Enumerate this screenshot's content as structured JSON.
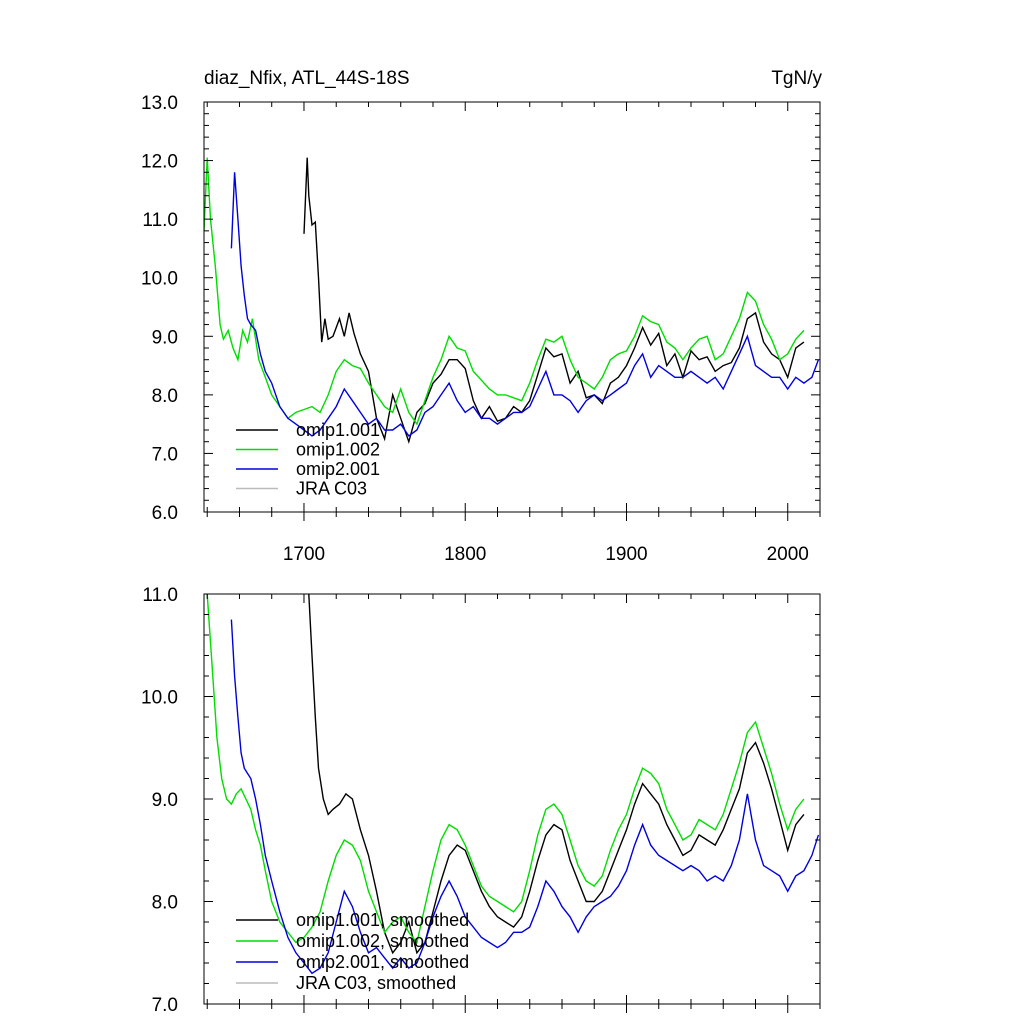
{
  "chart_data": [
    {
      "type": "line",
      "title": "diaz_Nfix, ATL_44S-18S",
      "units": "TgN/y",
      "xlabel": "",
      "ylabel": "",
      "xlim": [
        1638,
        2020
      ],
      "ylim": [
        6.0,
        13.0
      ],
      "x_ticks": [
        1700,
        1800,
        1900,
        2000
      ],
      "x_tick_labels": [
        "1700",
        "1800",
        "1900",
        "2000"
      ],
      "y_ticks": [
        6.0,
        7.0,
        8.0,
        9.0,
        10.0,
        11.0,
        12.0,
        13.0
      ],
      "y_tick_labels": [
        "6.0",
        "7.0",
        "8.0",
        "9.0",
        "10.0",
        "11.0",
        "12.0",
        "13.0"
      ],
      "legend_position": "bottom-left",
      "series": [
        {
          "name": "omip1.001",
          "color": "#000000",
          "x": [
            1700,
            1702,
            1703,
            1705,
            1707,
            1709,
            1711,
            1713,
            1715,
            1718,
            1722,
            1725,
            1728,
            1731,
            1735,
            1740,
            1745,
            1750,
            1755,
            1760,
            1765,
            1770,
            1775,
            1780,
            1785,
            1790,
            1795,
            1800,
            1805,
            1810,
            1815,
            1820,
            1825,
            1830,
            1835,
            1840,
            1845,
            1850,
            1855,
            1860,
            1865,
            1870,
            1875,
            1880,
            1885,
            1890,
            1895,
            1900,
            1905,
            1910,
            1915,
            1920,
            1925,
            1930,
            1935,
            1940,
            1945,
            1950,
            1955,
            1960,
            1965,
            1970,
            1975,
            1980,
            1985,
            1990,
            1995,
            2000,
            2005,
            2010
          ],
          "values": [
            10.75,
            12.05,
            11.4,
            10.9,
            10.95,
            10.0,
            8.9,
            9.3,
            8.95,
            9.0,
            9.3,
            9.0,
            9.4,
            9.05,
            8.7,
            8.4,
            7.6,
            7.25,
            8.0,
            7.6,
            7.2,
            7.7,
            7.85,
            8.2,
            8.35,
            8.6,
            8.6,
            8.45,
            7.9,
            7.6,
            7.8,
            7.55,
            7.6,
            7.8,
            7.7,
            7.9,
            8.35,
            8.8,
            8.65,
            8.7,
            8.2,
            8.4,
            7.95,
            8.0,
            7.85,
            8.2,
            8.3,
            8.5,
            8.8,
            9.15,
            8.85,
            9.05,
            8.5,
            8.7,
            8.3,
            8.75,
            8.6,
            8.65,
            8.4,
            8.5,
            8.55,
            8.8,
            9.3,
            9.4,
            8.9,
            8.7,
            8.6,
            8.3,
            8.8,
            8.9
          ]
        },
        {
          "name": "omip1.002",
          "color": "#00dd00",
          "x": [
            1638,
            1640,
            1642,
            1645,
            1648,
            1650,
            1653,
            1656,
            1659,
            1662,
            1665,
            1668,
            1672,
            1676,
            1680,
            1685,
            1690,
            1695,
            1700,
            1705,
            1710,
            1715,
            1720,
            1725,
            1730,
            1735,
            1740,
            1745,
            1750,
            1755,
            1760,
            1765,
            1770,
            1775,
            1780,
            1785,
            1790,
            1795,
            1800,
            1805,
            1810,
            1815,
            1820,
            1825,
            1830,
            1835,
            1840,
            1845,
            1850,
            1855,
            1860,
            1865,
            1870,
            1875,
            1880,
            1885,
            1890,
            1895,
            1900,
            1905,
            1910,
            1915,
            1920,
            1925,
            1930,
            1935,
            1940,
            1945,
            1950,
            1955,
            1960,
            1965,
            1970,
            1975,
            1980,
            1985,
            1990,
            1995,
            2000,
            2005,
            2010
          ],
          "values": [
            10.8,
            12.05,
            11.0,
            10.2,
            9.2,
            8.95,
            9.1,
            8.8,
            8.6,
            9.1,
            8.9,
            9.3,
            8.6,
            8.3,
            8.0,
            7.8,
            7.6,
            7.7,
            7.75,
            7.8,
            7.7,
            8.0,
            8.4,
            8.6,
            8.5,
            8.45,
            8.2,
            8.0,
            7.8,
            7.7,
            8.1,
            7.7,
            7.5,
            7.9,
            8.3,
            8.6,
            9.0,
            8.8,
            8.75,
            8.4,
            8.25,
            8.1,
            8.0,
            8.0,
            7.95,
            7.9,
            8.2,
            8.6,
            8.95,
            8.9,
            9.0,
            8.6,
            8.3,
            8.2,
            8.1,
            8.3,
            8.6,
            8.7,
            8.75,
            9.0,
            9.35,
            9.25,
            9.2,
            8.9,
            8.8,
            8.6,
            8.8,
            8.95,
            9.0,
            8.6,
            8.7,
            9.0,
            9.3,
            9.75,
            9.6,
            9.2,
            8.95,
            8.6,
            8.7,
            8.95,
            9.1
          ]
        },
        {
          "name": "omip2.001",
          "color": "#0000dd",
          "x": [
            1655,
            1657,
            1659,
            1661,
            1663,
            1665,
            1667,
            1670,
            1673,
            1676,
            1680,
            1685,
            1690,
            1695,
            1700,
            1705,
            1710,
            1715,
            1720,
            1725,
            1730,
            1735,
            1740,
            1745,
            1750,
            1755,
            1760,
            1765,
            1770,
            1775,
            1780,
            1785,
            1790,
            1795,
            1800,
            1805,
            1810,
            1815,
            1820,
            1825,
            1830,
            1835,
            1840,
            1845,
            1850,
            1855,
            1860,
            1865,
            1870,
            1875,
            1880,
            1885,
            1890,
            1895,
            1900,
            1905,
            1910,
            1915,
            1920,
            1925,
            1930,
            1935,
            1940,
            1945,
            1950,
            1955,
            1960,
            1965,
            1970,
            1975,
            1980,
            1985,
            1990,
            1995,
            2000,
            2005,
            2010,
            2015,
            2019
          ],
          "values": [
            10.5,
            11.8,
            11.0,
            10.2,
            9.7,
            9.3,
            9.2,
            9.1,
            8.7,
            8.4,
            8.2,
            7.8,
            7.6,
            7.5,
            7.4,
            7.3,
            7.4,
            7.6,
            7.8,
            8.1,
            7.9,
            7.7,
            7.5,
            7.6,
            7.4,
            7.4,
            7.5,
            7.3,
            7.4,
            7.7,
            7.8,
            8.0,
            8.2,
            7.9,
            7.7,
            7.8,
            7.6,
            7.6,
            7.5,
            7.6,
            7.7,
            7.7,
            7.8,
            8.1,
            8.4,
            8.0,
            8.0,
            7.9,
            7.7,
            7.9,
            8.0,
            7.9,
            8.0,
            8.1,
            8.2,
            8.5,
            8.7,
            8.3,
            8.5,
            8.4,
            8.3,
            8.3,
            8.4,
            8.3,
            8.2,
            8.3,
            8.1,
            8.4,
            8.7,
            9.0,
            8.5,
            8.4,
            8.3,
            8.3,
            8.1,
            8.3,
            8.2,
            8.3,
            8.6
          ]
        },
        {
          "name": "JRA C03",
          "color": "#bbbbbb",
          "x": [],
          "values": []
        }
      ]
    },
    {
      "type": "line",
      "title": "",
      "xlabel": "",
      "ylabel": "",
      "xlim": [
        1638,
        2020
      ],
      "ylim": [
        7.0,
        11.0
      ],
      "x_ticks": [
        1700,
        1800,
        1900,
        2000
      ],
      "x_tick_labels": [],
      "y_ticks": [
        7.0,
        8.0,
        9.0,
        10.0,
        11.0
      ],
      "y_tick_labels": [
        "7.0",
        "8.0",
        "9.0",
        "10.0",
        "11.0"
      ],
      "legend_position": "bottom-left",
      "series": [
        {
          "name": "omip1.001, smoothed",
          "color": "#000000",
          "x": [
            1703,
            1705,
            1707,
            1709,
            1712,
            1715,
            1718,
            1722,
            1726,
            1730,
            1735,
            1740,
            1745,
            1750,
            1755,
            1760,
            1765,
            1770,
            1775,
            1780,
            1785,
            1790,
            1795,
            1800,
            1805,
            1810,
            1815,
            1820,
            1825,
            1830,
            1835,
            1840,
            1845,
            1850,
            1855,
            1860,
            1865,
            1870,
            1875,
            1880,
            1885,
            1890,
            1895,
            1900,
            1905,
            1910,
            1915,
            1920,
            1925,
            1930,
            1935,
            1940,
            1945,
            1950,
            1955,
            1960,
            1965,
            1970,
            1975,
            1980,
            1985,
            1990,
            1995,
            2000,
            2005,
            2010
          ],
          "values": [
            11.0,
            10.4,
            9.8,
            9.3,
            9.0,
            8.85,
            8.9,
            8.95,
            9.05,
            9.0,
            8.7,
            8.45,
            8.1,
            7.7,
            7.5,
            7.6,
            7.8,
            7.5,
            7.6,
            7.9,
            8.2,
            8.45,
            8.55,
            8.5,
            8.3,
            8.1,
            7.95,
            7.85,
            7.8,
            7.75,
            7.85,
            8.1,
            8.4,
            8.65,
            8.75,
            8.7,
            8.4,
            8.2,
            8.0,
            8.0,
            8.1,
            8.3,
            8.5,
            8.7,
            8.95,
            9.15,
            9.05,
            8.95,
            8.75,
            8.6,
            8.45,
            8.5,
            8.65,
            8.6,
            8.55,
            8.7,
            8.9,
            9.1,
            9.45,
            9.55,
            9.35,
            9.1,
            8.8,
            8.5,
            8.75,
            8.85
          ]
        },
        {
          "name": "omip1.002, smoothed",
          "color": "#00dd00",
          "x": [
            1640,
            1643,
            1646,
            1649,
            1652,
            1655,
            1658,
            1661,
            1664,
            1667,
            1670,
            1673,
            1676,
            1680,
            1685,
            1690,
            1695,
            1700,
            1705,
            1710,
            1715,
            1720,
            1725,
            1730,
            1735,
            1740,
            1745,
            1750,
            1755,
            1760,
            1765,
            1770,
            1775,
            1780,
            1785,
            1790,
            1795,
            1800,
            1805,
            1810,
            1815,
            1820,
            1825,
            1830,
            1835,
            1840,
            1845,
            1850,
            1855,
            1860,
            1865,
            1870,
            1875,
            1880,
            1885,
            1890,
            1895,
            1900,
            1905,
            1910,
            1915,
            1920,
            1925,
            1930,
            1935,
            1940,
            1945,
            1950,
            1955,
            1960,
            1965,
            1970,
            1975,
            1980,
            1985,
            1990,
            1995,
            2000,
            2005,
            2010
          ],
          "values": [
            11.0,
            10.3,
            9.6,
            9.2,
            9.0,
            8.95,
            9.05,
            9.1,
            9.0,
            8.9,
            8.7,
            8.55,
            8.3,
            8.0,
            7.8,
            7.7,
            7.6,
            7.65,
            7.75,
            7.9,
            8.2,
            8.45,
            8.6,
            8.55,
            8.4,
            8.1,
            7.9,
            7.7,
            7.8,
            7.85,
            7.7,
            7.6,
            7.95,
            8.3,
            8.6,
            8.75,
            8.7,
            8.55,
            8.35,
            8.15,
            8.05,
            8.0,
            7.95,
            7.9,
            8.0,
            8.3,
            8.65,
            8.9,
            8.95,
            8.85,
            8.6,
            8.35,
            8.2,
            8.15,
            8.25,
            8.5,
            8.7,
            8.85,
            9.1,
            9.3,
            9.25,
            9.15,
            8.9,
            8.75,
            8.6,
            8.65,
            8.8,
            8.75,
            8.7,
            8.85,
            9.1,
            9.35,
            9.65,
            9.75,
            9.5,
            9.25,
            8.95,
            8.7,
            8.9,
            9.0
          ]
        },
        {
          "name": "omip2.001, smoothed",
          "color": "#0000dd",
          "x": [
            1655,
            1657,
            1659,
            1661,
            1663,
            1665,
            1667,
            1670,
            1673,
            1676,
            1680,
            1685,
            1690,
            1695,
            1700,
            1705,
            1710,
            1715,
            1720,
            1725,
            1730,
            1735,
            1740,
            1745,
            1750,
            1755,
            1760,
            1765,
            1770,
            1775,
            1780,
            1785,
            1790,
            1795,
            1800,
            1805,
            1810,
            1815,
            1820,
            1825,
            1830,
            1835,
            1840,
            1845,
            1850,
            1855,
            1860,
            1865,
            1870,
            1875,
            1880,
            1885,
            1890,
            1895,
            1900,
            1905,
            1910,
            1915,
            1920,
            1925,
            1930,
            1935,
            1940,
            1945,
            1950,
            1955,
            1960,
            1965,
            1970,
            1975,
            1980,
            1985,
            1990,
            1995,
            2000,
            2005,
            2010,
            2015,
            2019
          ],
          "values": [
            10.75,
            10.2,
            9.8,
            9.45,
            9.3,
            9.25,
            9.2,
            9.0,
            8.75,
            8.45,
            8.2,
            7.9,
            7.65,
            7.5,
            7.4,
            7.3,
            7.35,
            7.5,
            7.8,
            8.1,
            7.95,
            7.7,
            7.5,
            7.55,
            7.45,
            7.35,
            7.45,
            7.35,
            7.4,
            7.6,
            7.85,
            8.05,
            8.2,
            8.05,
            7.85,
            7.75,
            7.65,
            7.6,
            7.55,
            7.6,
            7.7,
            7.7,
            7.75,
            7.95,
            8.2,
            8.1,
            7.95,
            7.85,
            7.7,
            7.85,
            7.95,
            8.0,
            8.05,
            8.15,
            8.3,
            8.55,
            8.75,
            8.55,
            8.45,
            8.4,
            8.35,
            8.3,
            8.35,
            8.3,
            8.2,
            8.25,
            8.2,
            8.35,
            8.6,
            9.05,
            8.6,
            8.35,
            8.3,
            8.25,
            8.1,
            8.25,
            8.3,
            8.45,
            8.65
          ]
        },
        {
          "name": "JRA C03, smoothed",
          "color": "#bbbbbb",
          "x": [],
          "values": []
        }
      ]
    }
  ]
}
